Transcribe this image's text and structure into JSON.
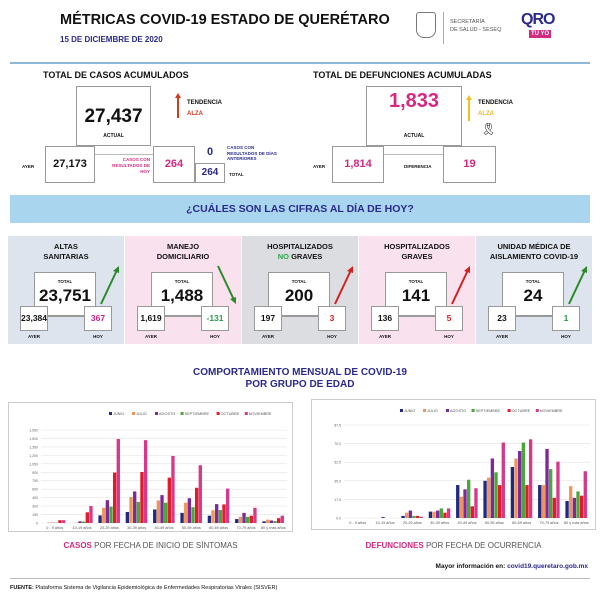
{
  "header": {
    "title": "MÉTRICAS COVID-19 ESTADO DE QUERÉTARO",
    "date": "15 DE DICIEMBRE DE 2020",
    "secretaria": "SECRETARÍA",
    "secretaria2": "DE SALUD - SESEQ",
    "logo_qro": "QRO",
    "logo_tuyo": "TÚ YO"
  },
  "casos": {
    "title": "TOTAL DE CASOS ACUMULADOS",
    "actual": "27,437",
    "actual_label": "ACTUAL",
    "tendencia": "TENDENCIA",
    "tendencia_value": "ALZA",
    "ayer_label": "AYER",
    "ayer": "27,173",
    "hoy_label": "CASOS CON RESULTADOS DE HOY",
    "hoy": "264",
    "anteriores": "0",
    "anteriores_label": "CASOS CON RESULTADOS DE DÍAS ANTERIORES",
    "total": "264",
    "total_label": "TOTAL"
  },
  "defunciones": {
    "title": "TOTAL DE DEFUNCIONES ACUMULADAS",
    "actual": "1,833",
    "actual_label": "ACTUAL",
    "tendencia": "TENDENCIA",
    "tendencia_value": "ALZA",
    "ayer_label": "AYER",
    "ayer": "1,814",
    "diferencia_label": "DIFERENCIA",
    "diferencia": "19"
  },
  "banner": "¿CUÁLES SON LAS CIFRAS AL DÍA DE HOY?",
  "panels": [
    {
      "title1": "ALTAS",
      "title2": "SANITARIAS",
      "total_label": "TOTAL",
      "total": "23,751",
      "ayer": "23,384",
      "hoy": "367",
      "ayer_label": "AYER",
      "hoy_label": "HOY",
      "trend": "up",
      "trend_color": "#2a8a2a",
      "hoy_color": "#c0288a",
      "bg": "#dde4ee"
    },
    {
      "title1": "MANEJO",
      "title2": "DOMICILIARIO",
      "total_label": "TOTAL",
      "total": "1,488",
      "ayer": "1,619",
      "hoy": "-131",
      "ayer_label": "AYER",
      "hoy_label": "HOY",
      "trend": "down",
      "trend_color": "#2a8a2a",
      "hoy_color": "#2a9a4a",
      "bg": "#f9e1ee"
    },
    {
      "title1": "HOSPITALIZADOS",
      "title2_highlight": "NO",
      "title2": " GRAVES",
      "total_label": "TOTAL",
      "total": "200",
      "ayer": "197",
      "hoy": "3",
      "ayer_label": "AYER",
      "hoy_label": "HOY",
      "trend": "up",
      "trend_color": "#d42020",
      "hoy_color": "#d42020",
      "bg": "#dcdde1"
    },
    {
      "title1": "HOSPITALIZADOS",
      "title2": "GRAVES",
      "total_label": "TOTAL",
      "total": "141",
      "ayer": "136",
      "hoy": "5",
      "ayer_label": "AYER",
      "hoy_label": "HOY",
      "trend": "up",
      "trend_color": "#d42020",
      "hoy_color": "#d42020",
      "bg": "#f9e1ee"
    },
    {
      "title1": "UNIDAD MÉDICA DE",
      "title2": "AISLAMIENTO COVID-19",
      "total_label": "TOTAL",
      "total": "24",
      "ayer": "23",
      "hoy": "1",
      "ayer_label": "AYER",
      "hoy_label": "HOY",
      "trend": "up",
      "trend_color": "#2a8a2a",
      "hoy_color": "#2a9a4a",
      "bg": "#dde4ee"
    }
  ],
  "section": {
    "title1": "COMPORTAMIENTO MENSUAL DE COVID-19",
    "title2": "POR GRUPO DE EDAD"
  },
  "chart_data": [
    {
      "type": "bar",
      "categories": [
        "0 - 9 años",
        "10-19 años",
        "20-29 años",
        "30-39 años",
        "40-49 años",
        "50-59 años",
        "60-69 años",
        "70-79 años",
        "80 y más años"
      ],
      "ylim": [
        0,
        1650
      ],
      "yticks": [
        "0",
        "150",
        "300",
        "450",
        "600",
        "750",
        "900",
        "1,050",
        "1,200",
        "1,350",
        "1,500",
        "1,650"
      ],
      "grid": true,
      "legend": "top",
      "series": [
        {
          "name": "JUNIO",
          "color": "#1f2a80",
          "values": [
            0,
            0,
            135,
            195,
            240,
            180,
            130,
            70,
            30
          ]
        },
        {
          "name": "JULIO",
          "color": "#f0955a",
          "values": [
            10,
            5,
            270,
            460,
            400,
            360,
            225,
            110,
            60
          ]
        },
        {
          "name": "AGOSTO",
          "color": "#7b2a9a",
          "values": [
            5,
            30,
            405,
            560,
            495,
            440,
            335,
            180,
            45
          ]
        },
        {
          "name": "SEPTIEMBRE",
          "color": "#4aa83a",
          "values": [
            5,
            25,
            290,
            375,
            360,
            280,
            230,
            110,
            35
          ]
        },
        {
          "name": "OCTUBRE",
          "color": "#e01b2a",
          "values": [
            50,
            190,
            895,
            905,
            805,
            625,
            330,
            130,
            85
          ]
        },
        {
          "name": "NOVIEMBRE",
          "color": "#d6398a",
          "values": [
            50,
            300,
            1490,
            1470,
            1190,
            1025,
            610,
            270,
            130
          ]
        }
      ],
      "caption_highlight": "CASOS",
      "caption": " POR FECHA DE INICIO DE SÍNTOMAS"
    },
    {
      "type": "bar",
      "categories": [
        "0 - 9 años",
        "10-19 años",
        "20-29 años",
        "30-39 años",
        "40-49 años",
        "50-59 años",
        "60-69 años",
        "70-79 años",
        "80 y más años"
      ],
      "ylim": [
        0,
        87.5
      ],
      "yticks": [
        "0.0",
        "17.5",
        "35.0",
        "52.5",
        "70.0",
        "87.5"
      ],
      "grid": true,
      "legend": "top",
      "series": [
        {
          "name": "JUNIO",
          "color": "#1f2a80",
          "values": [
            0,
            0,
            2,
            6,
            31,
            35,
            48,
            31,
            16
          ]
        },
        {
          "name": "JULIO",
          "color": "#f0955a",
          "values": [
            0,
            0,
            5,
            6,
            20,
            38,
            56,
            31,
            30
          ]
        },
        {
          "name": "AGOSTO",
          "color": "#7b2a9a",
          "values": [
            0,
            1,
            7,
            7,
            27,
            56,
            63,
            65,
            19
          ]
        },
        {
          "name": "SEPTIEMBRE",
          "color": "#4aa83a",
          "values": [
            0,
            0,
            2,
            9,
            36,
            43,
            71,
            46,
            25
          ]
        },
        {
          "name": "OCTUBRE",
          "color": "#e01b2a",
          "values": [
            0,
            0,
            2,
            5,
            11,
            31,
            31,
            19,
            21
          ]
        },
        {
          "name": "NOVIEMBRE",
          "color": "#d6398a",
          "values": [
            0,
            0,
            1,
            9,
            28,
            71,
            74,
            53,
            44
          ]
        }
      ],
      "caption_highlight": "DEFUNCIONES",
      "caption": " POR FECHA DE OCURRENCIA"
    }
  ],
  "footer": {
    "info_label": "Mayor información en:",
    "info_link": "covid19.queretaro.gob.mx",
    "fuente_label": "FUENTE:",
    "fuente": "Plataforma Sistema  de Vigilancia Epidemiológica de Enfermedades Respiratorias Virales (SISVER)"
  }
}
